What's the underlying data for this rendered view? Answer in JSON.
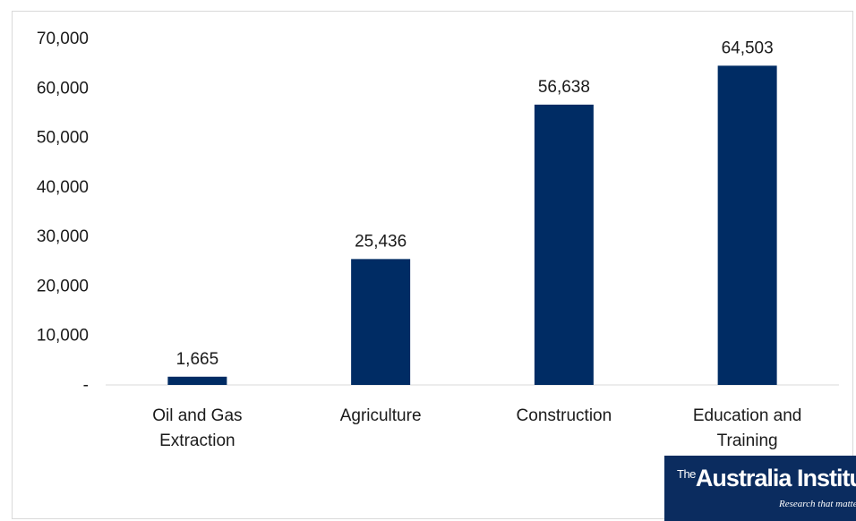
{
  "chart_data": {
    "type": "bar",
    "categories": [
      [
        "Oil and Gas",
        "Extraction"
      ],
      [
        "Agriculture"
      ],
      [
        "Construction"
      ],
      [
        "Education and",
        "Training"
      ]
    ],
    "values": [
      1665,
      25436,
      56638,
      64503
    ],
    "data_labels": [
      "1,665",
      "25,436",
      "56,638",
      "64,503"
    ],
    "y_ticks": [
      {
        "value": 0,
        "label": "-"
      },
      {
        "value": 10000,
        "label": "10,000"
      },
      {
        "value": 20000,
        "label": "20,000"
      },
      {
        "value": 30000,
        "label": "30,000"
      },
      {
        "value": 40000,
        "label": "40,000"
      },
      {
        "value": 50000,
        "label": "50,000"
      },
      {
        "value": 60000,
        "label": "60,000"
      },
      {
        "value": 70000,
        "label": "70,000"
      }
    ],
    "ylim": [
      0,
      70000
    ],
    "grid": false,
    "legend": "none",
    "bar_color": "#002c64"
  },
  "logo": {
    "the": "The",
    "name": "Australia Institute",
    "tagline": "Research that matters"
  }
}
